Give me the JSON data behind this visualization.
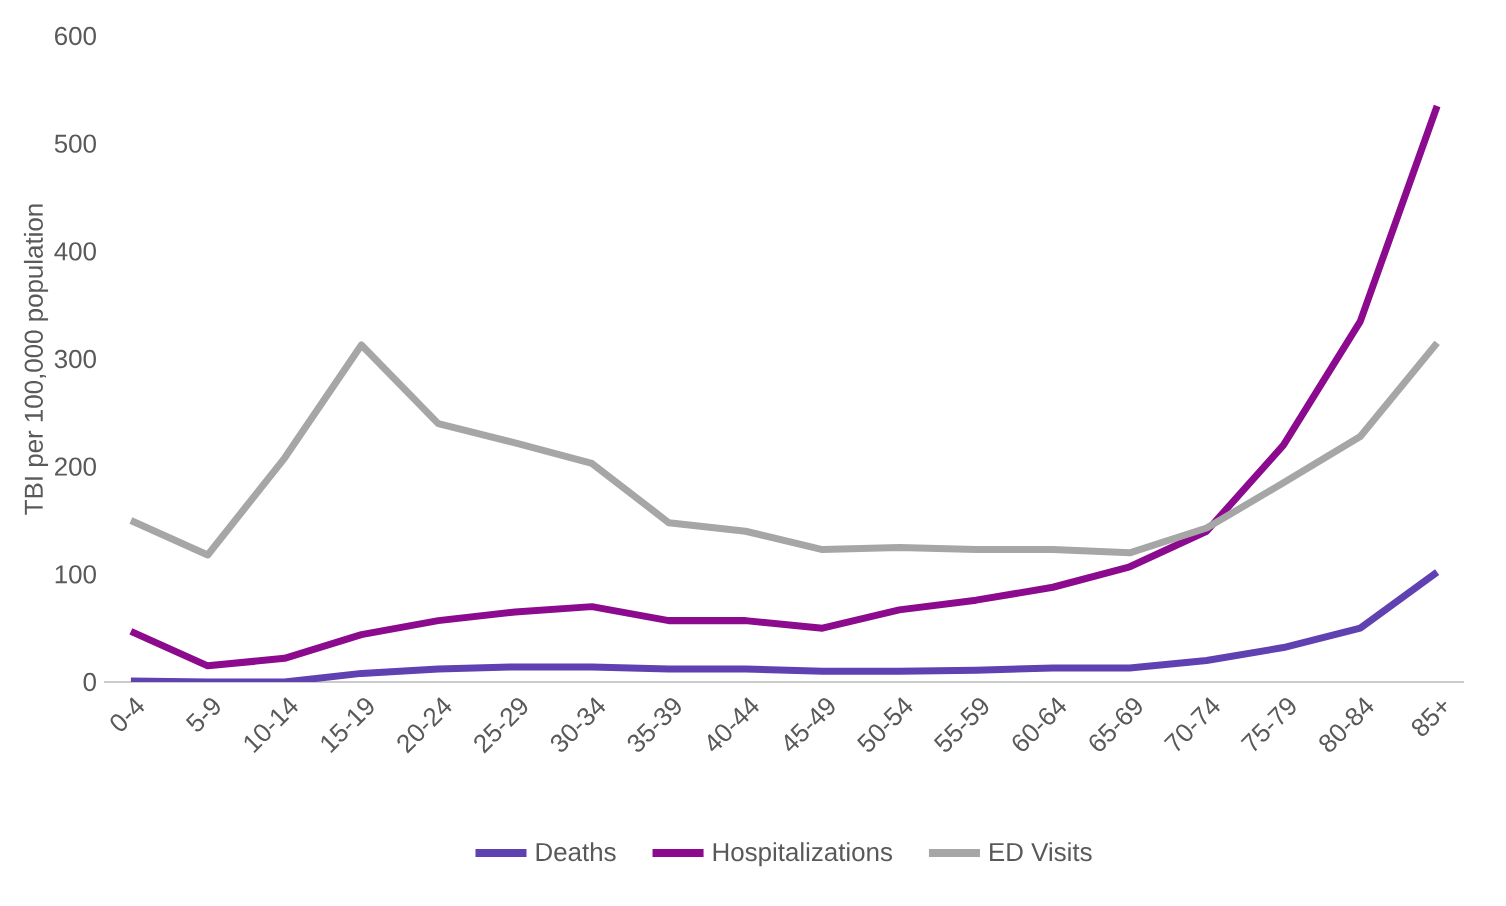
{
  "chart_data": {
    "type": "line",
    "ylabel": "TBI per 100,000 population",
    "categories": [
      "0-4",
      "5-9",
      "10-14",
      "15-19",
      "20-24",
      "25-29",
      "30-34",
      "35-39",
      "40-44",
      "45-49",
      "50-54",
      "55-59",
      "60-64",
      "65-69",
      "70-74",
      "75-79",
      "80-84",
      "85+"
    ],
    "series": [
      {
        "name": "Deaths",
        "color": "#5f41b2",
        "values": [
          1,
          0,
          0,
          8,
          12,
          14,
          14,
          12,
          12,
          10,
          10,
          11,
          13,
          13,
          20,
          32,
          50,
          102
        ]
      },
      {
        "name": "Hospitalizations",
        "color": "#8b0a8e",
        "values": [
          47,
          15,
          22,
          44,
          57,
          65,
          70,
          57,
          57,
          50,
          67,
          76,
          88,
          107,
          140,
          220,
          335,
          535
        ]
      },
      {
        "name": "ED Visits",
        "color": "#a6a6a6",
        "values": [
          150,
          118,
          208,
          313,
          240,
          222,
          203,
          148,
          140,
          123,
          125,
          123,
          123,
          120,
          143,
          185,
          228,
          315
        ]
      }
    ],
    "ylim": [
      0,
      600
    ],
    "yticks": [
      0,
      100,
      200,
      300,
      400,
      500,
      600
    ],
    "grid": false,
    "legend": "bottom",
    "marker": "none",
    "line_style": "solid"
  }
}
